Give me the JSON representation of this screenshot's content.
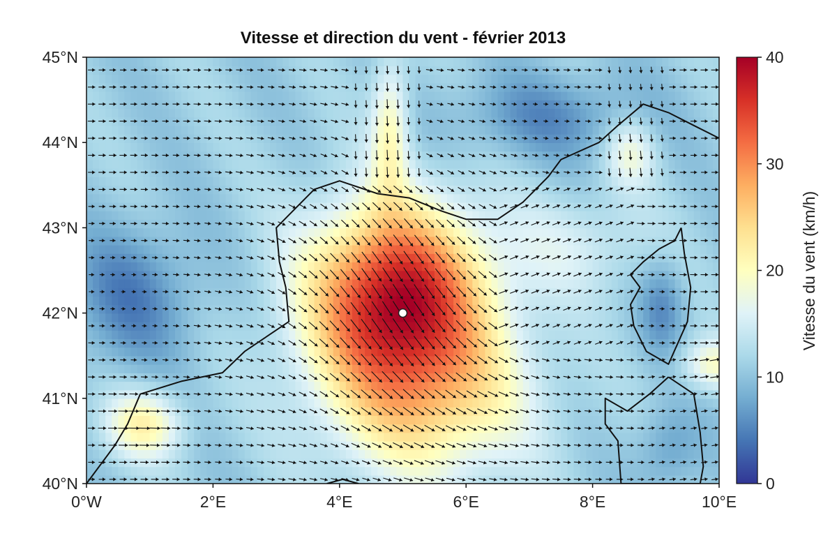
{
  "title": "Vitesse et direction du vent - février 2013",
  "map": {
    "lon_range": [
      0,
      10
    ],
    "lat_range": [
      40,
      45
    ],
    "x_ticks": [
      {
        "value": 0,
        "label": "0°W"
      },
      {
        "value": 2,
        "label": "2°E"
      },
      {
        "value": 4,
        "label": "4°E"
      },
      {
        "value": 6,
        "label": "6°E"
      },
      {
        "value": 8,
        "label": "8°E"
      },
      {
        "value": 10,
        "label": "10°E"
      }
    ],
    "y_ticks": [
      {
        "value": 45,
        "label": "45°N"
      },
      {
        "value": 44,
        "label": "44°N"
      },
      {
        "value": 43,
        "label": "43°N"
      },
      {
        "value": 42,
        "label": "42°N"
      },
      {
        "value": 41,
        "label": "41°N"
      },
      {
        "value": 40,
        "label": "40°N"
      }
    ],
    "marker": {
      "lon": 5.0,
      "lat": 42.0
    },
    "coastline_mainland": [
      [
        0.0,
        40.0
      ],
      [
        0.45,
        40.45
      ],
      [
        0.65,
        40.7
      ],
      [
        0.85,
        41.05
      ],
      [
        1.5,
        41.2
      ],
      [
        2.15,
        41.3
      ],
      [
        2.5,
        41.55
      ],
      [
        3.2,
        41.9
      ],
      [
        3.15,
        42.3
      ],
      [
        3.05,
        42.6
      ],
      [
        3.0,
        43.0
      ],
      [
        3.2,
        43.15
      ],
      [
        3.6,
        43.45
      ],
      [
        4.0,
        43.55
      ],
      [
        4.6,
        43.4
      ],
      [
        5.1,
        43.35
      ],
      [
        5.6,
        43.2
      ],
      [
        6.0,
        43.1
      ],
      [
        6.5,
        43.1
      ],
      [
        6.9,
        43.3
      ],
      [
        7.3,
        43.6
      ],
      [
        7.5,
        43.8
      ],
      [
        7.8,
        43.9
      ],
      [
        8.1,
        44.0
      ],
      [
        8.4,
        44.2
      ],
      [
        8.8,
        44.45
      ],
      [
        9.2,
        44.35
      ],
      [
        9.6,
        44.2
      ],
      [
        10.0,
        44.05
      ]
    ],
    "coastline_corsica": [
      [
        9.4,
        43.0
      ],
      [
        9.45,
        42.7
      ],
      [
        9.55,
        42.3
      ],
      [
        9.5,
        41.9
      ],
      [
        9.2,
        41.4
      ],
      [
        8.85,
        41.55
      ],
      [
        8.65,
        41.85
      ],
      [
        8.6,
        42.1
      ],
      [
        8.75,
        42.3
      ],
      [
        8.6,
        42.45
      ],
      [
        8.8,
        42.6
      ],
      [
        9.05,
        42.75
      ],
      [
        9.3,
        42.85
      ],
      [
        9.4,
        43.0
      ]
    ],
    "coastline_sardinia": [
      [
        9.2,
        41.25
      ],
      [
        9.6,
        41.05
      ],
      [
        9.7,
        40.6
      ],
      [
        9.75,
        40.2
      ],
      [
        9.7,
        40.0
      ],
      [
        8.45,
        40.0
      ],
      [
        8.4,
        40.5
      ],
      [
        8.2,
        40.7
      ],
      [
        8.2,
        41.0
      ],
      [
        8.55,
        40.85
      ],
      [
        8.9,
        41.05
      ],
      [
        9.2,
        41.25
      ]
    ],
    "coastline_menorca": [
      [
        3.8,
        40.0
      ],
      [
        4.05,
        40.05
      ],
      [
        4.3,
        40.0
      ]
    ],
    "wind_field": {
      "lon_step": 0.167,
      "lat_step": 0.2
    }
  },
  "colorbar": {
    "label": "Vitesse du vent (km/h)",
    "min": 0,
    "max": 40,
    "ticks": [
      {
        "value": 0,
        "label": "0"
      },
      {
        "value": 10,
        "label": "10"
      },
      {
        "value": 20,
        "label": "20"
      },
      {
        "value": 30,
        "label": "30"
      },
      {
        "value": 40,
        "label": "40"
      }
    ],
    "colors": [
      "#313695",
      "#4575b4",
      "#74add1",
      "#abd9e9",
      "#e0f3f8",
      "#ffffbf",
      "#fee090",
      "#fdae61",
      "#f46d43",
      "#d73027",
      "#a50026"
    ]
  }
}
